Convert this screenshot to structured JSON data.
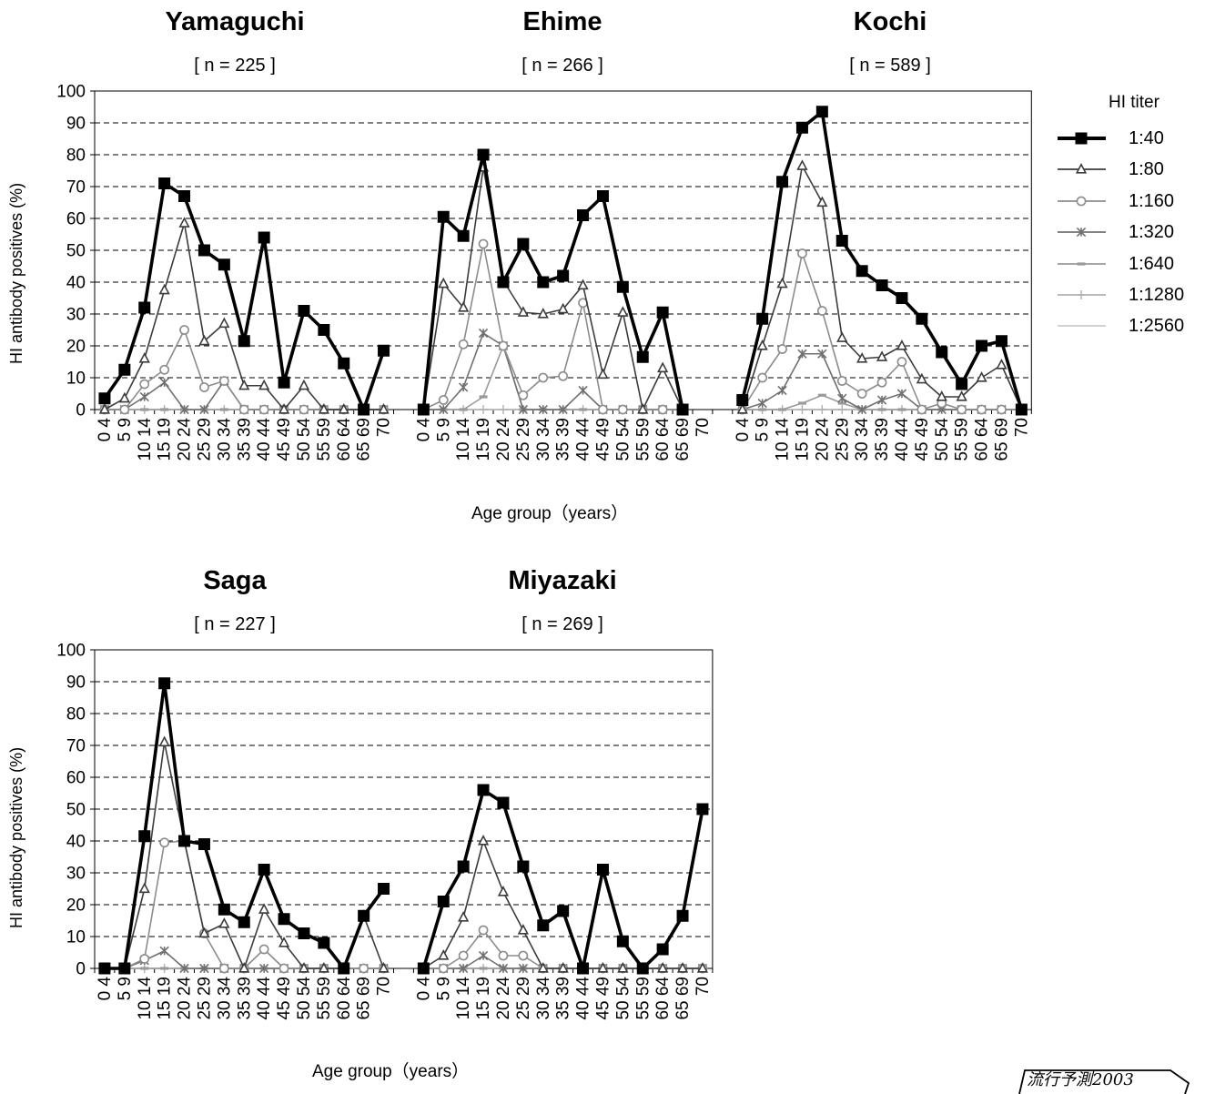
{
  "chart_data": {
    "type": "line",
    "ylabel": "HI antibody positives (%)",
    "xlabel": "Age group（years）",
    "ylim": [
      0,
      100
    ],
    "yticks": [
      "0",
      "10",
      "20",
      "30",
      "40",
      "50",
      "60",
      "70",
      "80",
      "90",
      "100"
    ],
    "grid": "horizontal dashed",
    "legend": {
      "title": "HI titer",
      "position": "right",
      "entries": [
        "1:40",
        "1:80",
        "1:160",
        "1:320",
        "1:640",
        "1:1280",
        "1:2560"
      ]
    },
    "categories": [
      "0 4",
      "5 9",
      "10 14",
      "15 19",
      "20 24",
      "25 29",
      "30 34",
      "35 39",
      "40 44",
      "45 49",
      "50 54",
      "55 59",
      "60 64",
      "65 69",
      "70"
    ],
    "panels": [
      {
        "title": "Yamaguchi",
        "n": "[ n = 225 ]",
        "series": [
          {
            "name": "1:40",
            "values": [
              3.5,
              12.5,
              32,
              71,
              67,
              50,
              45.5,
              21.5,
              54,
              8.5,
              31,
              25,
              14.5,
              0,
              18.5
            ]
          },
          {
            "name": "1:80",
            "values": [
              0,
              3.5,
              16,
              37.5,
              58.5,
              21.5,
              27,
              7.5,
              7.5,
              0,
              7.5,
              0,
              0,
              0,
              0
            ]
          },
          {
            "name": "1:160",
            "values": [
              0,
              0,
              8,
              12.5,
              25,
              7,
              9,
              0,
              0,
              0,
              0,
              0,
              0,
              0,
              0
            ]
          },
          {
            "name": "1:320",
            "values": [
              0,
              0,
              4,
              8.5,
              0,
              0,
              9,
              0,
              0,
              0,
              0,
              0,
              0,
              0,
              0
            ]
          },
          {
            "name": "1:640",
            "values": [
              0,
              0,
              0,
              0,
              0,
              0,
              0,
              0,
              0,
              0,
              0,
              0,
              0,
              0,
              0
            ]
          },
          {
            "name": "1:1280",
            "values": [
              0,
              0,
              0,
              0,
              0,
              0,
              0,
              0,
              0,
              0,
              0,
              0,
              0,
              0,
              0
            ]
          },
          {
            "name": "1:2560",
            "values": [
              0,
              0,
              0,
              0,
              0,
              0,
              0,
              0,
              0,
              0,
              0,
              0,
              0,
              0,
              0
            ]
          }
        ]
      },
      {
        "title": "Ehime",
        "n": "[ n = 266 ]",
        "series": [
          {
            "name": "1:40",
            "values": [
              0,
              60.5,
              54.5,
              80,
              40,
              52,
              40,
              42,
              61,
              67,
              38.5,
              16.5,
              30.5,
              0,
              null
            ]
          },
          {
            "name": "1:80",
            "values": [
              0,
              39.5,
              32,
              76,
              40.5,
              30.5,
              30,
              31.5,
              39,
              11,
              30.5,
              0,
              13,
              0,
              null
            ]
          },
          {
            "name": "1:160",
            "values": [
              0,
              3,
              20.5,
              52,
              20,
              4.5,
              10,
              10.5,
              33.5,
              0,
              0,
              0,
              0,
              0,
              null
            ]
          },
          {
            "name": "1:320",
            "values": [
              0,
              0,
              7,
              24,
              20,
              0,
              0,
              0,
              6,
              0,
              0,
              0,
              0,
              0,
              null
            ]
          },
          {
            "name": "1:640",
            "values": [
              0,
              0,
              0,
              4,
              20,
              0,
              0,
              0,
              0,
              0,
              0,
              0,
              0,
              0,
              null
            ]
          },
          {
            "name": "1:1280",
            "values": [
              0,
              0,
              0,
              0,
              0,
              0,
              0,
              0,
              0,
              0,
              0,
              0,
              0,
              0,
              null
            ]
          },
          {
            "name": "1:2560",
            "values": [
              0,
              0,
              0,
              0,
              0,
              0,
              0,
              0,
              0,
              0,
              0,
              0,
              0,
              0,
              null
            ]
          }
        ]
      },
      {
        "title": "Kochi",
        "n": "[ n = 589 ]",
        "series": [
          {
            "name": "1:40",
            "values": [
              3,
              28.5,
              71.5,
              88.5,
              93.5,
              53,
              43.5,
              39,
              35,
              28.5,
              18,
              8,
              20,
              21.5,
              0
            ]
          },
          {
            "name": "1:80",
            "values": [
              0,
              20,
              39.5,
              76.5,
              65,
              22.5,
              16,
              16.5,
              20,
              9.5,
              4,
              4,
              10,
              14,
              0
            ]
          },
          {
            "name": "1:160",
            "values": [
              0,
              10,
              19,
              49,
              31,
              9,
              5,
              8.5,
              15,
              0,
              2,
              0,
              0,
              0,
              0
            ]
          },
          {
            "name": "1:320",
            "values": [
              0,
              2,
              6,
              17.5,
              17.5,
              3.5,
              0,
              3,
              5,
              0,
              0,
              0,
              0,
              0,
              0
            ]
          },
          {
            "name": "1:640",
            "values": [
              0,
              0,
              0,
              2,
              4.5,
              2,
              0,
              0,
              0,
              0,
              0,
              0,
              0,
              0,
              0
            ]
          },
          {
            "name": "1:1280",
            "values": [
              0,
              0,
              0,
              0,
              0,
              0,
              0,
              0,
              0,
              0,
              0,
              0,
              0,
              0,
              0
            ]
          },
          {
            "name": "1:2560",
            "values": [
              0,
              0,
              0,
              0,
              0,
              0,
              0,
              0,
              0,
              0,
              0,
              0,
              0,
              0,
              0
            ]
          }
        ]
      },
      {
        "title": "Saga",
        "n": "[ n = 227 ]",
        "series": [
          {
            "name": "1:40",
            "values": [
              0,
              0,
              41.5,
              89.5,
              40,
              39,
              18.5,
              14.5,
              31,
              15.5,
              11,
              8,
              0,
              16.5,
              25
            ]
          },
          {
            "name": "1:80",
            "values": [
              0,
              0,
              25,
              71,
              40,
              11,
              14,
              0,
              18.5,
              8,
              0,
              0,
              0,
              16.5,
              0
            ]
          },
          {
            "name": "1:160",
            "values": [
              0,
              0,
              3,
              39.5,
              40,
              11,
              0,
              0,
              6,
              0,
              0,
              0,
              0,
              0,
              0
            ]
          },
          {
            "name": "1:320",
            "values": [
              0,
              0,
              2.5,
              5.5,
              0,
              0,
              0,
              0,
              0,
              0,
              0,
              0,
              0,
              0,
              0
            ]
          },
          {
            "name": "1:640",
            "values": [
              0,
              0,
              0,
              0,
              0,
              0,
              0,
              0,
              0,
              0,
              0,
              0,
              0,
              0,
              0
            ]
          },
          {
            "name": "1:1280",
            "values": [
              0,
              0,
              0,
              0,
              0,
              0,
              0,
              0,
              0,
              0,
              0,
              0,
              0,
              0,
              0
            ]
          },
          {
            "name": "1:2560",
            "values": [
              0,
              0,
              0,
              0,
              0,
              0,
              0,
              0,
              0,
              0,
              0,
              0,
              0,
              0,
              0
            ]
          }
        ]
      },
      {
        "title": "Miyazaki",
        "n": "[ n = 269 ]",
        "series": [
          {
            "name": "1:40",
            "values": [
              0,
              21,
              32,
              56,
              52,
              32,
              13.5,
              18,
              0,
              31,
              8.5,
              0,
              6,
              16.5,
              50
            ]
          },
          {
            "name": "1:80",
            "values": [
              0,
              4,
              16,
              40,
              24,
              12,
              0,
              0,
              0,
              0,
              0,
              0,
              0,
              0,
              0
            ]
          },
          {
            "name": "1:160",
            "values": [
              0,
              0,
              4,
              12,
              4,
              4,
              0,
              0,
              0,
              0,
              0,
              0,
              0,
              0,
              0
            ]
          },
          {
            "name": "1:320",
            "values": [
              0,
              0,
              0,
              4,
              0,
              0,
              0,
              0,
              0,
              0,
              0,
              0,
              0,
              0,
              0
            ]
          },
          {
            "name": "1:640",
            "values": [
              0,
              0,
              0,
              0,
              0,
              0,
              0,
              0,
              0,
              0,
              0,
              0,
              0,
              0,
              0
            ]
          },
          {
            "name": "1:1280",
            "values": [
              0,
              0,
              0,
              0,
              0,
              0,
              0,
              0,
              0,
              0,
              0,
              0,
              0,
              0,
              0
            ]
          },
          {
            "name": "1:2560",
            "values": [
              0,
              0,
              0,
              0,
              0,
              0,
              0,
              0,
              0,
              0,
              0,
              0,
              0,
              0,
              0
            ]
          }
        ]
      }
    ],
    "series_styles": [
      {
        "name": "1:40",
        "color": "#000000",
        "marker": "square-filled"
      },
      {
        "name": "1:80",
        "color": "#3c3c3c",
        "marker": "triangle-open"
      },
      {
        "name": "1:160",
        "color": "#8c8c8c",
        "marker": "circle-open"
      },
      {
        "name": "1:320",
        "color": "#707070",
        "marker": "asterisk"
      },
      {
        "name": "1:640",
        "color": "#9a9a9a",
        "marker": "dash"
      },
      {
        "name": "1:1280",
        "color": "#b0b0b0",
        "marker": "plus"
      },
      {
        "name": "1:2560",
        "color": "#cccccc",
        "marker": "none"
      }
    ]
  },
  "badge": "流行予測2003"
}
